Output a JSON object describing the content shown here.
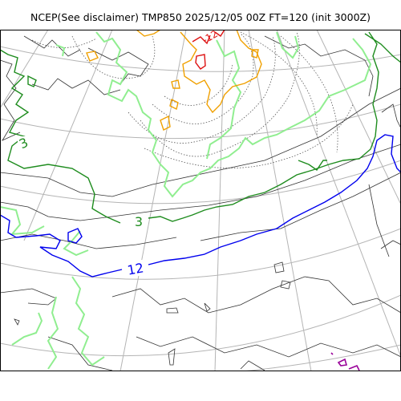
{
  "title": "NCEP(See disclaimer) TMP850 2025/12/05 00Z FT=120 (init 3000Z)",
  "contour_labels": {
    "green_upper": "3",
    "green_lower": "3",
    "blue": "12",
    "red": "-12"
  },
  "colors": {
    "coast": "#333333",
    "graticule": "#b4b4b4",
    "dotted": "#555555",
    "green": "#1e8c1e",
    "light_green": "#90ee90",
    "blue": "#0000ee",
    "orange": "#f0a000",
    "red": "#dd1111",
    "purple": "#990099"
  }
}
